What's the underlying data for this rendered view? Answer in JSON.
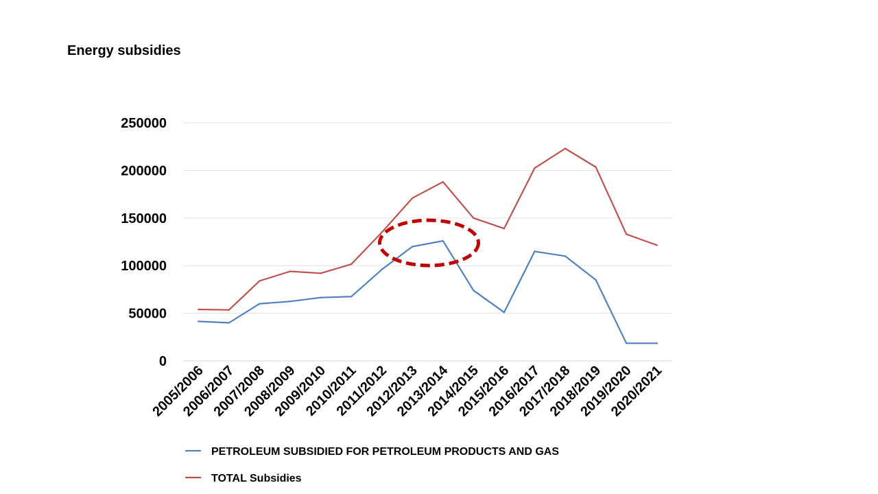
{
  "slide": {
    "title": "Energy subsidies"
  },
  "chart_data": {
    "type": "line",
    "title": "",
    "xlabel": "",
    "ylabel": "",
    "categories": [
      "2005/2006",
      "2006/2007",
      "2007/2008",
      "2008/2009",
      "2009/2010",
      "2010/2011",
      "2011/2012",
      "2012/2013",
      "2013/2014",
      "2014/2015",
      "2015/2016",
      "2016/2017",
      "2017/2018",
      "2018/2019",
      "2019/2020",
      "2020/2021"
    ],
    "ylim": [
      0,
      250000
    ],
    "yticks": [
      0,
      50000,
      100000,
      150000,
      200000,
      250000
    ],
    "grid": "horizontal",
    "legend_position": "bottom",
    "series": [
      {
        "name": "PETROLEUM SUBSIDIED FOR PETROLEUM PRODUCTS AND GAS",
        "color": "#4F81BD",
        "values": [
          41500,
          40000,
          60000,
          62500,
          66500,
          67500,
          96000,
          120000,
          126000,
          74000,
          51000,
          115000,
          110000,
          85000,
          18500,
          18500
        ]
      },
      {
        "name": "TOTAL Subsidies",
        "color": "#C0504D",
        "values": [
          54000,
          53500,
          84000,
          94000,
          92000,
          101500,
          135000,
          171000,
          188000,
          150000,
          139000,
          202500,
          223000,
          203500,
          133000,
          121500
        ]
      }
    ],
    "annotation": {
      "shape": "dashed-ellipse",
      "color": "#C00000",
      "around": [
        "2012/2013",
        "2013/2014"
      ]
    }
  }
}
